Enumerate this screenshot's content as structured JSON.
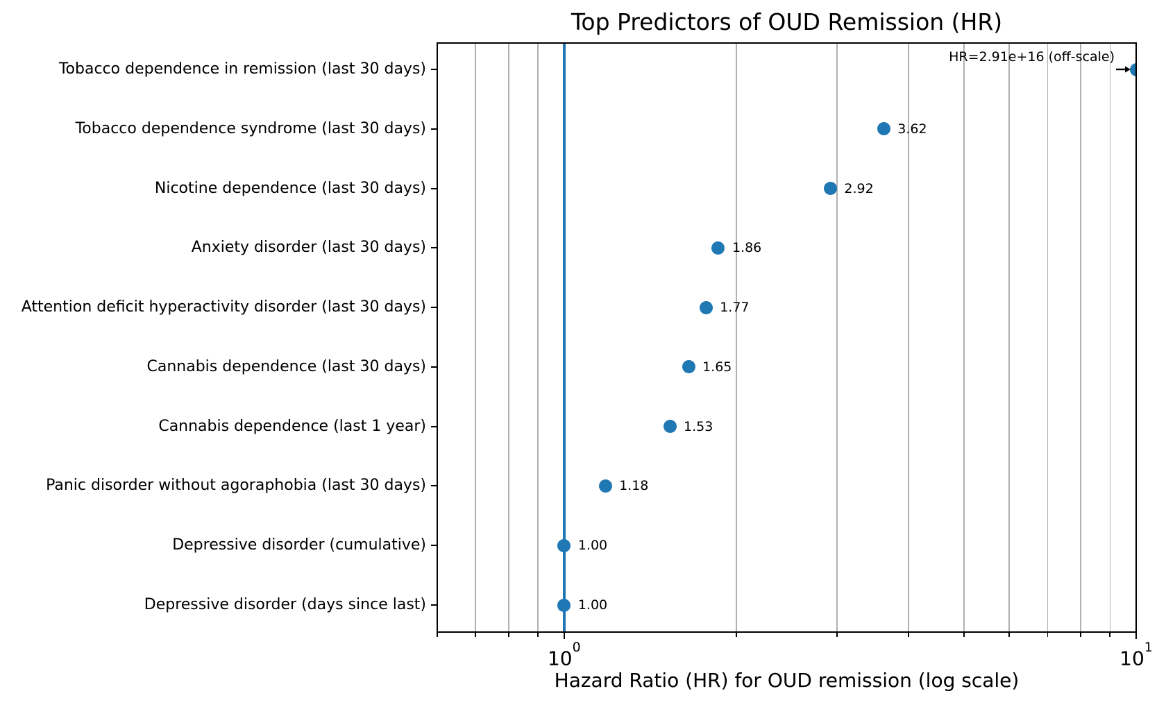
{
  "chart_data": {
    "type": "scatter",
    "title": "Top Predictors of OUD Remission (HR)",
    "xlabel": "Hazard Ratio (HR) for OUD remission (log scale)",
    "ylabel": "",
    "x_scale": "log",
    "xlim": [
      0.6,
      10
    ],
    "grid": {
      "axis": "x",
      "show": true,
      "color": "#b0b0b0"
    },
    "legend": null,
    "colors": {
      "marker": "#1f77b4",
      "reference_line": "#1f77b4",
      "grid": "#b0b0b0",
      "text": "#000000",
      "background": "#ffffff"
    },
    "reference_line": {
      "value": 1.0
    },
    "x_major_ticks": [
      {
        "value": 1,
        "base": "10",
        "exponent": "0"
      },
      {
        "value": 10,
        "base": "10",
        "exponent": "1"
      }
    ],
    "x_minor_ticks": [
      0.6,
      0.7,
      0.8,
      0.9,
      2,
      3,
      4,
      5,
      6,
      7,
      8,
      9
    ],
    "categories": [
      "Tobacco dependence in remission (last 30 days)",
      "Tobacco dependence syndrome (last 30 days)",
      "Nicotine dependence (last 30 days)",
      "Anxiety disorder (last 30 days)",
      "Attention deficit hyperactivity disorder (last 30 days)",
      "Cannabis dependence (last 30 days)",
      "Cannabis dependence (last 1 year)",
      "Panic disorder without agoraphobia (last 30 days)",
      "Depressive disorder (cumulative)",
      "Depressive disorder (days since last)"
    ],
    "points": [
      {
        "category": "Tobacco dependence in remission (last 30 days)",
        "hr": 2.91e+16,
        "off_scale": true,
        "plotted_at": 10,
        "annotation": "HR=2.91e+16 (off-scale)"
      },
      {
        "category": "Tobacco dependence syndrome (last 30 days)",
        "hr": 3.62,
        "value_label": "3.62"
      },
      {
        "category": "Nicotine dependence (last 30 days)",
        "hr": 2.92,
        "value_label": "2.92"
      },
      {
        "category": "Anxiety disorder (last 30 days)",
        "hr": 1.86,
        "value_label": "1.86"
      },
      {
        "category": "Attention deficit hyperactivity disorder (last 30 days)",
        "hr": 1.77,
        "value_label": "1.77"
      },
      {
        "category": "Cannabis dependence (last 30 days)",
        "hr": 1.65,
        "value_label": "1.65"
      },
      {
        "category": "Cannabis dependence (last 1 year)",
        "hr": 1.53,
        "value_label": "1.53"
      },
      {
        "category": "Panic disorder without agoraphobia (last 30 days)",
        "hr": 1.18,
        "value_label": "1.18"
      },
      {
        "category": "Depressive disorder (cumulative)",
        "hr": 1.0,
        "value_label": "1.00"
      },
      {
        "category": "Depressive disorder (days since last)",
        "hr": 1.0,
        "value_label": "1.00"
      }
    ]
  }
}
